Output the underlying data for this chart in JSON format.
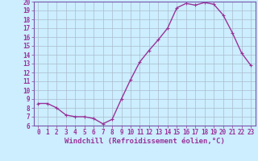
{
  "x": [
    0,
    1,
    2,
    3,
    4,
    5,
    6,
    7,
    8,
    9,
    10,
    11,
    12,
    13,
    14,
    15,
    16,
    17,
    18,
    19,
    20,
    21,
    22,
    23
  ],
  "y": [
    8.5,
    8.5,
    8.0,
    7.2,
    7.0,
    7.0,
    6.8,
    6.2,
    6.7,
    9.0,
    11.2,
    13.2,
    14.5,
    15.7,
    17.0,
    19.3,
    19.8,
    19.6,
    19.9,
    19.7,
    18.5,
    16.5,
    14.2,
    12.8
  ],
  "line_color": "#993399",
  "marker": "+",
  "marker_size": 3,
  "linewidth": 1.0,
  "xlabel": "Windchill (Refroidissement éolien,°C)",
  "ylim": [
    6,
    20
  ],
  "yticks": [
    6,
    7,
    8,
    9,
    10,
    11,
    12,
    13,
    14,
    15,
    16,
    17,
    18,
    19,
    20
  ],
  "xticks": [
    0,
    1,
    2,
    3,
    4,
    5,
    6,
    7,
    8,
    9,
    10,
    11,
    12,
    13,
    14,
    15,
    16,
    17,
    18,
    19,
    20,
    21,
    22,
    23
  ],
  "bg_color": "#cceeff",
  "grid_color": "#aabbcc",
  "line_label_color": "#993399",
  "tick_label_size": 5.5,
  "xlabel_size": 6.5,
  "xlabel_color": "#993399",
  "xlabel_weight": "bold",
  "spine_color": "#7755aa"
}
